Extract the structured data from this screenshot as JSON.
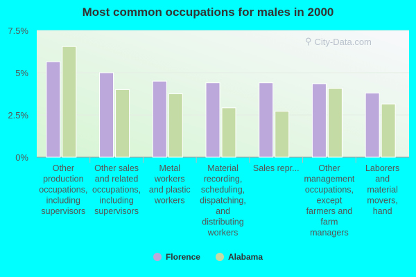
{
  "chart_data": {
    "type": "bar",
    "title": "Most common occupations for males in 2000",
    "categories": [
      [
        "Other",
        "production",
        "occupations,",
        "including",
        "supervisors"
      ],
      [
        "Other sales",
        "and related",
        "occupations,",
        "including",
        "supervisors"
      ],
      [
        "Metal",
        "workers",
        "and plastic",
        "workers"
      ],
      [
        "Material",
        "recording,",
        "scheduling,",
        "dispatching,",
        "and",
        "distributing",
        "workers"
      ],
      [
        "Sales repr..."
      ],
      [
        "Other",
        "management",
        "occupations,",
        "except",
        "farmers and",
        "farm",
        "managers"
      ],
      [
        "Laborers",
        "and",
        "material",
        "movers,",
        "hand"
      ]
    ],
    "series": [
      {
        "name": "Florence",
        "color": "#bca8da",
        "values": [
          5.65,
          5.0,
          4.5,
          4.4,
          4.4,
          4.35,
          3.8
        ]
      },
      {
        "name": "Alabama",
        "color": "#c5dba6",
        "values": [
          6.55,
          4.0,
          3.75,
          2.92,
          2.72,
          4.08,
          3.15
        ]
      }
    ],
    "ylim": [
      0,
      7.5
    ],
    "yticks": [
      "0%",
      "2.5%",
      "5%",
      "7.5%"
    ],
    "legend_position": "bottom-center",
    "grid": true
  },
  "watermark": "City-Data.com"
}
